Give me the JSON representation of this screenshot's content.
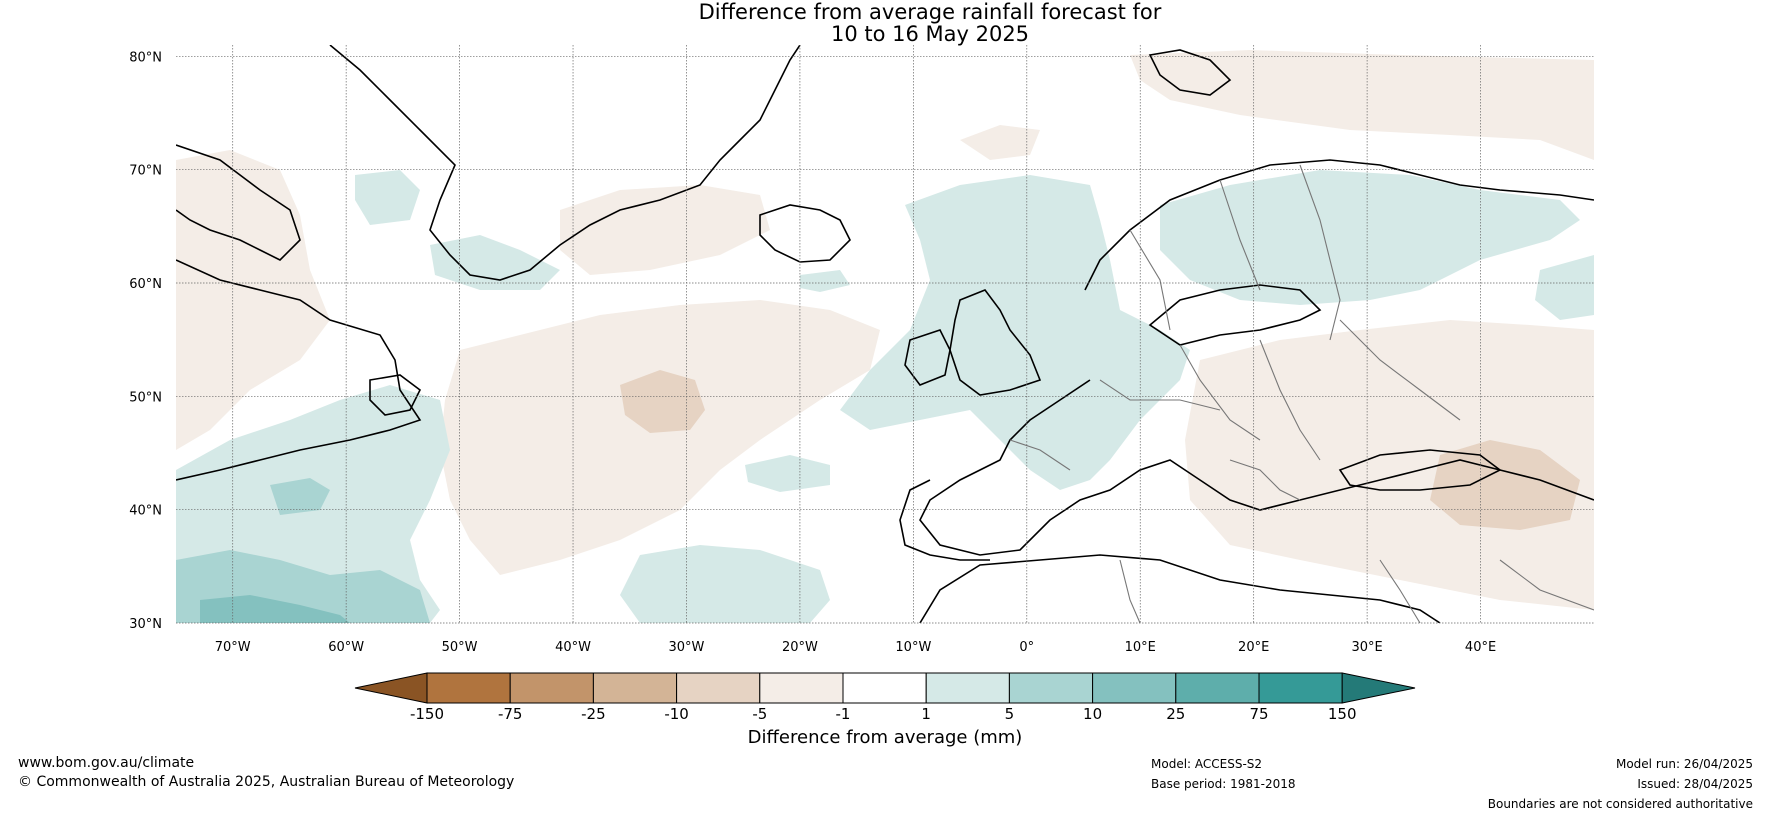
{
  "title": {
    "line1": "Difference from average rainfall forecast for",
    "line2": "10 to 16 May 2025"
  },
  "map": {
    "region": "North Atlantic and Europe",
    "lon_range": [
      -75,
      50
    ],
    "lat_range": [
      30,
      81
    ],
    "lat_ticks": [
      {
        "value": 80,
        "label": "80°N"
      },
      {
        "value": 70,
        "label": "70°N"
      },
      {
        "value": 60,
        "label": "60°N"
      },
      {
        "value": 50,
        "label": "50°N"
      },
      {
        "value": 40,
        "label": "40°N"
      },
      {
        "value": 30,
        "label": "30°N"
      }
    ],
    "lon_ticks": [
      {
        "value": -70,
        "label": "70°W"
      },
      {
        "value": -60,
        "label": "60°W"
      },
      {
        "value": -50,
        "label": "50°W"
      },
      {
        "value": -40,
        "label": "40°W"
      },
      {
        "value": -30,
        "label": "30°W"
      },
      {
        "value": -20,
        "label": "20°W"
      },
      {
        "value": -10,
        "label": "10°W"
      },
      {
        "value": 0,
        "label": "0°"
      },
      {
        "value": 10,
        "label": "10°E"
      },
      {
        "value": 20,
        "label": "20°E"
      },
      {
        "value": 30,
        "label": "30°E"
      },
      {
        "value": 40,
        "label": "40°E"
      }
    ],
    "gridlines": true
  },
  "colorbar": {
    "label": "Difference from average (mm)",
    "tick_labels": [
      "-150",
      "-75",
      "-25",
      "-10",
      "-5",
      "-1",
      "1",
      "5",
      "10",
      "25",
      "75",
      "150"
    ],
    "colors": [
      "#8a5424",
      "#b0743e",
      "#c2946a",
      "#d3b496",
      "#e6d3c3",
      "#f4ede7",
      "#ffffff",
      "#d5e9e7",
      "#a9d4d2",
      "#84c1bf",
      "#5eaeab",
      "#359a97",
      "#247a78"
    ]
  },
  "footer": {
    "website": "www.bom.gov.au/climate",
    "copyright": "© Commonwealth of Australia 2025, Australian Bureau of Meteorology",
    "model": "Model: ACCESS-S2",
    "base_period": "Base period: 1981-2018",
    "model_run": "Model run: 26/04/2025",
    "issued": "Issued: 28/04/2025",
    "disclaimer": "Boundaries are not considered authoritative"
  }
}
